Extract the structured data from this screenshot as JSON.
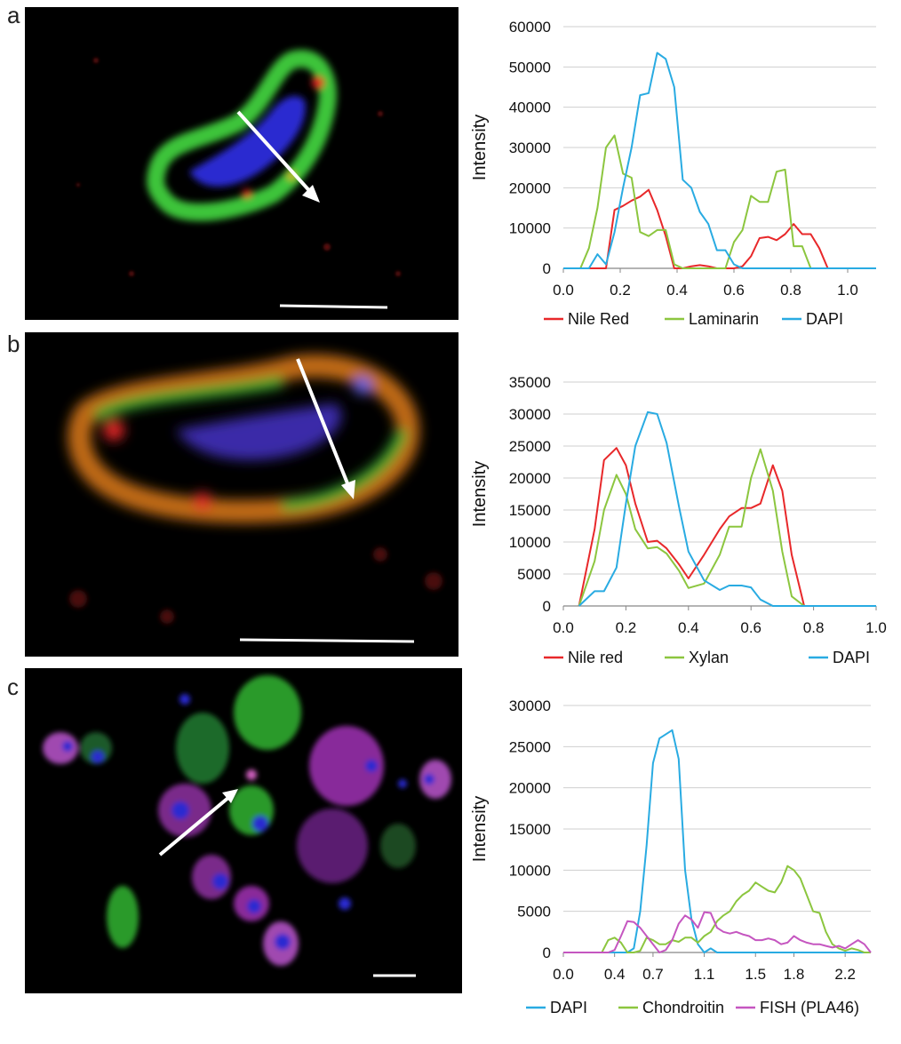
{
  "panels": [
    {
      "letter": "a"
    },
    {
      "letter": "b"
    },
    {
      "letter": "c"
    }
  ],
  "chart_data": [
    {
      "type": "line",
      "ylabel": "Intensity",
      "xlabel": "",
      "xlim": [
        0,
        1.1
      ],
      "ylim": [
        0,
        60000
      ],
      "xticks": [
        "0.0",
        "0.2",
        "0.4",
        "0.6",
        "0.8",
        "1.0"
      ],
      "yticks": [
        "0",
        "10000",
        "20000",
        "30000",
        "40000",
        "50000",
        "60000"
      ],
      "legend_position": "bottom",
      "series": [
        {
          "name": "Nile Red",
          "color": "#e8282a",
          "x": [
            0,
            0.03,
            0.06,
            0.09,
            0.12,
            0.15,
            0.18,
            0.21,
            0.24,
            0.27,
            0.3,
            0.33,
            0.36,
            0.39,
            0.42,
            0.45,
            0.48,
            0.51,
            0.54,
            0.57,
            0.6,
            0.63,
            0.66,
            0.69,
            0.72,
            0.75,
            0.78,
            0.81,
            0.84,
            0.87,
            0.9,
            0.93,
            0.96,
            1.0,
            1.05,
            1.1
          ],
          "y": [
            0,
            0,
            0,
            0,
            0,
            0,
            14500,
            15500,
            16800,
            17800,
            19500,
            14500,
            8000,
            0,
            0,
            500,
            800,
            500,
            0,
            0,
            0,
            500,
            3000,
            7500,
            7800,
            7000,
            8500,
            11000,
            8500,
            8500,
            5000,
            0,
            0,
            0,
            0,
            0
          ]
        },
        {
          "name": "Laminarin",
          "color": "#8cc63f",
          "x": [
            0,
            0.03,
            0.06,
            0.09,
            0.12,
            0.15,
            0.18,
            0.21,
            0.24,
            0.27,
            0.3,
            0.33,
            0.36,
            0.39,
            0.42,
            0.45,
            0.48,
            0.51,
            0.54,
            0.57,
            0.6,
            0.63,
            0.66,
            0.69,
            0.72,
            0.75,
            0.78,
            0.81,
            0.84,
            0.87,
            0.9,
            0.93,
            0.96,
            1.0,
            1.05,
            1.1
          ],
          "y": [
            0,
            0,
            0,
            5000,
            15000,
            30000,
            33000,
            23500,
            22500,
            9000,
            8000,
            9500,
            9500,
            1000,
            0,
            0,
            0,
            0,
            0,
            0,
            6500,
            9500,
            18000,
            16500,
            16500,
            24000,
            24500,
            5500,
            5500,
            0,
            0,
            0,
            0,
            0,
            0,
            0
          ]
        },
        {
          "name": "DAPI",
          "color": "#29abe2",
          "x": [
            0,
            0.03,
            0.06,
            0.09,
            0.12,
            0.15,
            0.18,
            0.21,
            0.24,
            0.27,
            0.3,
            0.33,
            0.36,
            0.39,
            0.42,
            0.45,
            0.48,
            0.51,
            0.54,
            0.57,
            0.6,
            0.63,
            0.66,
            0.69,
            0.72,
            0.75,
            0.78,
            0.81,
            0.84,
            0.87,
            0.9,
            0.93,
            0.96,
            1.0,
            1.05,
            1.1
          ],
          "y": [
            0,
            0,
            0,
            0,
            3500,
            1000,
            9000,
            20000,
            30000,
            43000,
            43500,
            53500,
            52000,
            45000,
            22000,
            20000,
            14000,
            11000,
            4500,
            4500,
            1000,
            0,
            0,
            0,
            0,
            0,
            0,
            0,
            0,
            0,
            0,
            0,
            0,
            0,
            0,
            0
          ]
        }
      ]
    },
    {
      "type": "line",
      "ylabel": "Intensity",
      "xlabel": "",
      "xlim": [
        0,
        1.0
      ],
      "ylim": [
        0,
        35000
      ],
      "xticks": [
        "0.0",
        "0.2",
        "0.4",
        "0.6",
        "0.8",
        "1.0"
      ],
      "yticks": [
        "0",
        "5000",
        "10000",
        "15000",
        "20000",
        "25000",
        "30000",
        "35000"
      ],
      "legend_position": "bottom",
      "series": [
        {
          "name": "Nile red",
          "color": "#e8282a",
          "x": [
            0.05,
            0.1,
            0.13,
            0.17,
            0.2,
            0.23,
            0.27,
            0.3,
            0.33,
            0.37,
            0.4,
            0.45,
            0.5,
            0.53,
            0.57,
            0.6,
            0.63,
            0.67,
            0.7,
            0.73,
            0.77,
            0.8,
            0.83,
            0.87,
            0.9,
            0.95,
            1.0
          ],
          "y": [
            0,
            12000,
            22800,
            24700,
            22000,
            16000,
            10000,
            10200,
            9000,
            6500,
            4300,
            8000,
            12000,
            14000,
            15300,
            15300,
            16000,
            22000,
            18000,
            8000,
            0,
            0,
            0,
            0,
            0,
            0,
            0
          ]
        },
        {
          "name": "Xylan",
          "color": "#8cc63f",
          "x": [
            0.05,
            0.1,
            0.13,
            0.17,
            0.2,
            0.23,
            0.27,
            0.3,
            0.33,
            0.37,
            0.4,
            0.45,
            0.5,
            0.53,
            0.57,
            0.6,
            0.63,
            0.67,
            0.7,
            0.73,
            0.77,
            0.8,
            0.83,
            0.87,
            0.9,
            0.95,
            1.0
          ],
          "y": [
            0,
            7000,
            15000,
            20500,
            17500,
            12000,
            9000,
            9200,
            8200,
            5500,
            2800,
            3500,
            8000,
            12400,
            12400,
            20000,
            24500,
            18000,
            8500,
            1500,
            0,
            0,
            0,
            0,
            0,
            0,
            0
          ]
        },
        {
          "name": "DAPI",
          "color": "#29abe2",
          "x": [
            0.05,
            0.1,
            0.13,
            0.17,
            0.2,
            0.23,
            0.27,
            0.3,
            0.33,
            0.37,
            0.4,
            0.45,
            0.5,
            0.53,
            0.57,
            0.6,
            0.63,
            0.67,
            0.7,
            0.73,
            0.77,
            0.8,
            0.83,
            0.87,
            0.9,
            0.95,
            1.0
          ],
          "y": [
            0,
            2300,
            2300,
            6000,
            16000,
            25000,
            30300,
            30000,
            25500,
            15500,
            8500,
            4000,
            2500,
            3200,
            3200,
            2900,
            1000,
            0,
            0,
            0,
            0,
            0,
            0,
            0,
            0,
            0,
            0
          ]
        }
      ]
    },
    {
      "type": "line",
      "ylabel": "Intensity",
      "xlabel": "",
      "xlim": [
        0,
        2.4
      ],
      "ylim": [
        0,
        30000
      ],
      "xticks": [
        "0.0",
        "0.4",
        "0.7",
        "1.1",
        "1.5",
        "1.8",
        "2.2"
      ],
      "yticks": [
        "0",
        "5000",
        "10000",
        "15000",
        "20000",
        "25000",
        "30000"
      ],
      "legend_position": "bottom",
      "series": [
        {
          "name": "DAPI",
          "color": "#29abe2",
          "x": [
            0,
            0.3,
            0.5,
            0.55,
            0.6,
            0.65,
            0.7,
            0.75,
            0.8,
            0.85,
            0.9,
            0.95,
            1.0,
            1.05,
            1.1,
            1.15,
            1.2,
            1.3,
            1.4,
            1.5,
            1.6,
            1.8,
            2.0,
            2.2,
            2.4
          ],
          "y": [
            0,
            0,
            0,
            500,
            5000,
            13000,
            23000,
            26000,
            26500,
            27000,
            23500,
            10000,
            4000,
            1000,
            0,
            500,
            0,
            0,
            0,
            0,
            0,
            0,
            0,
            0,
            0
          ]
        },
        {
          "name": "Chondroitin",
          "color": "#8cc63f",
          "x": [
            0,
            0.3,
            0.35,
            0.4,
            0.45,
            0.5,
            0.55,
            0.6,
            0.65,
            0.7,
            0.75,
            0.8,
            0.85,
            0.9,
            0.95,
            1.0,
            1.05,
            1.1,
            1.15,
            1.2,
            1.25,
            1.3,
            1.35,
            1.4,
            1.45,
            1.5,
            1.55,
            1.6,
            1.65,
            1.7,
            1.75,
            1.8,
            1.85,
            1.9,
            1.95,
            2.0,
            2.05,
            2.1,
            2.15,
            2.2,
            2.25,
            2.3,
            2.35,
            2.4
          ],
          "y": [
            0,
            0,
            1500,
            1800,
            1200,
            0,
            0,
            200,
            1800,
            1500,
            1000,
            1000,
            1500,
            1300,
            1800,
            1800,
            1200,
            2000,
            2500,
            3800,
            4500,
            5000,
            6200,
            7000,
            7500,
            8500,
            8000,
            7500,
            7300,
            8500,
            10500,
            10000,
            9000,
            7000,
            5000,
            4800,
            2500,
            1000,
            500,
            200,
            500,
            300,
            0,
            0
          ]
        },
        {
          "name": "FISH (PLA46)",
          "color": "#c556c0",
          "x": [
            0,
            0.3,
            0.35,
            0.4,
            0.45,
            0.5,
            0.55,
            0.6,
            0.65,
            0.7,
            0.75,
            0.8,
            0.85,
            0.9,
            0.95,
            1.0,
            1.05,
            1.1,
            1.15,
            1.2,
            1.25,
            1.3,
            1.35,
            1.4,
            1.45,
            1.5,
            1.55,
            1.6,
            1.65,
            1.7,
            1.75,
            1.8,
            1.85,
            1.9,
            1.95,
            2.0,
            2.05,
            2.1,
            2.15,
            2.2,
            2.25,
            2.3,
            2.35,
            2.4
          ],
          "y": [
            0,
            0,
            0,
            300,
            2000,
            3800,
            3700,
            3000,
            2000,
            1000,
            0,
            300,
            1500,
            3500,
            4500,
            4000,
            3000,
            4900,
            4800,
            3000,
            2500,
            2300,
            2500,
            2200,
            2000,
            1500,
            1500,
            1700,
            1500,
            1000,
            1200,
            2000,
            1500,
            1200,
            1000,
            1000,
            800,
            600,
            800,
            500,
            1000,
            1500,
            1000,
            0
          ]
        }
      ]
    }
  ]
}
